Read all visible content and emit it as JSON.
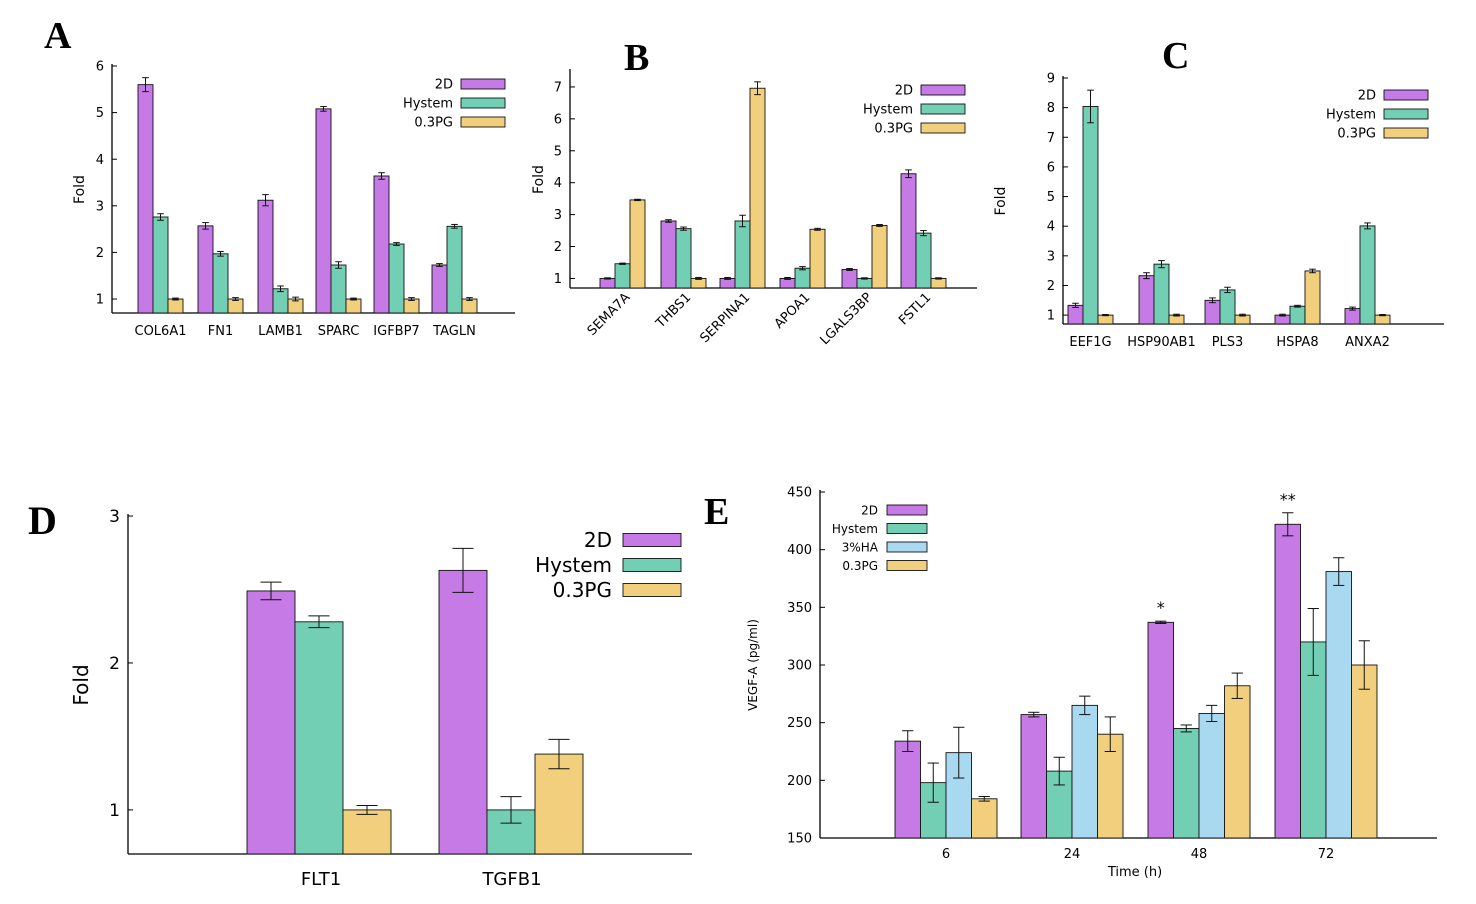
{
  "colors": {
    "2D": "#c67ae6",
    "Hystem": "#73cfb3",
    "3%HA": "#a9d8f1",
    "0.3PG": "#f2cf7c",
    "axis": "#000000"
  },
  "chart_data": [
    {
      "id": "A",
      "panel_label": "A",
      "type": "bar",
      "title": "",
      "xlabel": "",
      "ylabel": "Fold",
      "ylim": [
        0.7,
        6
      ],
      "yticks": [
        1,
        2,
        3,
        4,
        5,
        6
      ],
      "categories": [
        "COL6A1",
        "FN1",
        "LAMB1",
        "SPARC",
        "IGFBP7",
        "TAGLN"
      ],
      "series": [
        {
          "name": "2D",
          "values": [
            5.6,
            2.57,
            3.12,
            5.08,
            3.64,
            1.73
          ],
          "errors": [
            0.15,
            0.07,
            0.12,
            0.05,
            0.07,
            0.03
          ]
        },
        {
          "name": "Hystem",
          "values": [
            2.76,
            1.97,
            1.22,
            1.73,
            2.18,
            2.56
          ],
          "errors": [
            0.07,
            0.05,
            0.06,
            0.07,
            0.03,
            0.04
          ]
        },
        {
          "name": "0.3PG",
          "values": [
            1.0,
            1.0,
            1.0,
            1.0,
            1.0,
            1.0
          ],
          "errors": [
            0.02,
            0.03,
            0.04,
            0.02,
            0.03,
            0.03
          ]
        }
      ],
      "legend": "top-right",
      "annotations": [],
      "xlabel_rotate": false
    },
    {
      "id": "B",
      "panel_label": "B",
      "type": "bar",
      "title": "",
      "xlabel": "",
      "ylabel": "Fold",
      "ylim": [
        0.7,
        7.5
      ],
      "yticks": [
        1,
        2,
        3,
        4,
        5,
        6,
        7
      ],
      "categories": [
        "SEMA7A",
        "THBS1",
        "SERPINA1",
        "APOA1",
        "LGALS3BP",
        "FSTL1"
      ],
      "series": [
        {
          "name": "2D",
          "values": [
            1.0,
            2.8,
            1.0,
            1.0,
            1.28,
            4.28
          ],
          "errors": [
            0.02,
            0.04,
            0.03,
            0.03,
            0.03,
            0.12
          ]
        },
        {
          "name": "Hystem",
          "values": [
            1.46,
            2.56,
            2.8,
            1.32,
            1.0,
            2.42
          ],
          "errors": [
            0.02,
            0.05,
            0.18,
            0.05,
            0.02,
            0.08
          ]
        },
        {
          "name": "0.3PG",
          "values": [
            3.46,
            1.0,
            6.96,
            2.54,
            2.66,
            1.0
          ],
          "errors": [
            0.02,
            0.03,
            0.2,
            0.03,
            0.03,
            0.02
          ]
        }
      ],
      "legend": "top-right",
      "annotations": [],
      "xlabel_rotate": true
    },
    {
      "id": "C",
      "panel_label": "C",
      "type": "bar",
      "title": "",
      "xlabel": "",
      "ylabel": "Fold",
      "ylim": [
        0.7,
        9
      ],
      "yticks": [
        1,
        2,
        3,
        4,
        5,
        6,
        7,
        8,
        9
      ],
      "categories": [
        "EEF1G",
        "HSP90AB1",
        "PLS3",
        "HSPA8",
        "ANXA2"
      ],
      "series": [
        {
          "name": "2D",
          "values": [
            1.33,
            2.33,
            1.5,
            1.0,
            1.22
          ],
          "errors": [
            0.07,
            0.1,
            0.08,
            0.03,
            0.05
          ]
        },
        {
          "name": "Hystem",
          "values": [
            8.04,
            2.72,
            1.85,
            1.3,
            4.01
          ],
          "errors": [
            0.55,
            0.12,
            0.09,
            0.03,
            0.1
          ]
        },
        {
          "name": "0.3PG",
          "values": [
            1.0,
            1.0,
            1.0,
            2.49,
            1.0
          ],
          "errors": [
            0.02,
            0.03,
            0.03,
            0.06,
            0.02
          ]
        }
      ],
      "legend": "top-right",
      "annotations": [],
      "xlabel_rotate": false
    },
    {
      "id": "D",
      "panel_label": "D",
      "type": "bar",
      "title": "",
      "xlabel": "",
      "ylabel": "Fold",
      "ylim": [
        0.7,
        3
      ],
      "yticks": [
        1,
        2,
        3
      ],
      "categories": [
        "FLT1",
        "TGFB1"
      ],
      "series": [
        {
          "name": "2D",
          "values": [
            2.49,
            2.63
          ],
          "errors": [
            0.06,
            0.15
          ]
        },
        {
          "name": "Hystem",
          "values": [
            2.28,
            1.0
          ],
          "errors": [
            0.04,
            0.09
          ]
        },
        {
          "name": "0.3PG",
          "values": [
            1.0,
            1.38
          ],
          "errors": [
            0.03,
            0.1
          ]
        }
      ],
      "legend": "top-right",
      "annotations": [],
      "xlabel_rotate": false
    },
    {
      "id": "E",
      "panel_label": "E",
      "type": "bar",
      "title": "",
      "xlabel": "Time (h)",
      "ylabel": "VEGF-A (pg/ml)",
      "ylim": [
        150,
        450
      ],
      "yticks": [
        150,
        200,
        250,
        300,
        350,
        400,
        450
      ],
      "categories": [
        "6",
        "24",
        "48",
        "72"
      ],
      "series": [
        {
          "name": "2D",
          "values": [
            234,
            257,
            337,
            422
          ],
          "errors": [
            9,
            2,
            1,
            10
          ]
        },
        {
          "name": "Hystem",
          "values": [
            198,
            208,
            245,
            320
          ],
          "errors": [
            17,
            12,
            3,
            29
          ]
        },
        {
          "name": "3%HA",
          "values": [
            224,
            265,
            258,
            381
          ],
          "errors": [
            22,
            8,
            7,
            12
          ]
        },
        {
          "name": "0.3PG",
          "values": [
            184,
            240,
            282,
            300
          ],
          "errors": [
            2,
            15,
            11,
            21
          ]
        }
      ],
      "legend": "top-left",
      "annotations": [
        {
          "category": "48",
          "series": "2D",
          "text": "*"
        },
        {
          "category": "72",
          "series": "2D",
          "text": "**"
        }
      ],
      "xlabel_rotate": false
    }
  ]
}
